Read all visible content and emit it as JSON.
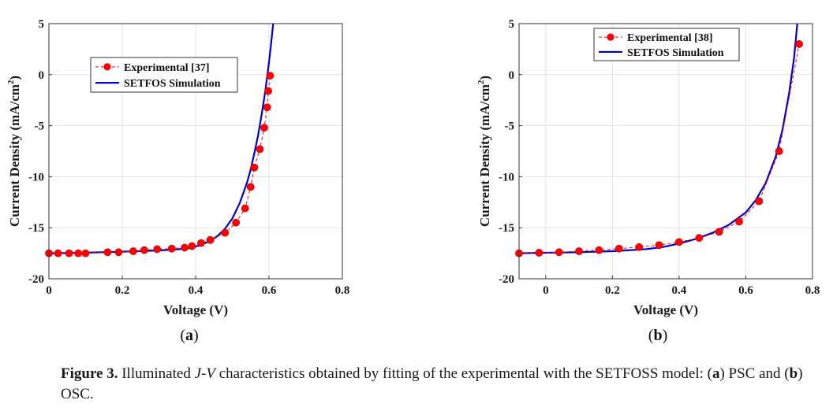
{
  "chart_data": [
    {
      "type": "line",
      "panel_label": "a",
      "xlabel": "Voltage (V)",
      "ylabel": "Current Density (mA/cm",
      "ylabel_sup": "2",
      "ylabel_close": ")",
      "xlim": [
        0,
        0.8
      ],
      "ylim": [
        -20,
        5
      ],
      "xticks": [
        0,
        0.2,
        0.4,
        0.6,
        0.8
      ],
      "xtick_labels": [
        "0",
        "0.2",
        "0.4",
        "0.6",
        "0.8"
      ],
      "yticks": [
        -20,
        -15,
        -10,
        -5,
        0,
        5
      ],
      "ytick_labels": [
        "-20",
        "-15",
        "-10",
        "-5",
        "0",
        "5"
      ],
      "grid": true,
      "legend_position": "upper-left",
      "series": [
        {
          "name": "Experimental [37]",
          "style": "dashed-markers",
          "color": "#ff0000",
          "x": [
            0.0,
            0.025,
            0.055,
            0.08,
            0.1,
            0.16,
            0.19,
            0.23,
            0.26,
            0.295,
            0.335,
            0.37,
            0.39,
            0.415,
            0.44,
            0.48,
            0.51,
            0.535,
            0.55,
            0.56,
            0.575,
            0.587,
            0.595,
            0.598,
            0.603
          ],
          "y": [
            -17.5,
            -17.5,
            -17.5,
            -17.5,
            -17.5,
            -17.4,
            -17.4,
            -17.3,
            -17.2,
            -17.1,
            -17.05,
            -16.95,
            -16.8,
            -16.5,
            -16.2,
            -15.5,
            -14.5,
            -13.1,
            -11.0,
            -9.1,
            -7.3,
            -5.2,
            -3.2,
            -1.6,
            -0.1
          ]
        },
        {
          "name": "SETFOS Simulation",
          "style": "solid",
          "color": "#0000cc",
          "x": [
            0,
            0.05,
            0.1,
            0.15,
            0.2,
            0.25,
            0.3,
            0.35,
            0.38,
            0.41,
            0.44,
            0.46,
            0.48,
            0.5,
            0.52,
            0.54,
            0.55,
            0.56,
            0.57,
            0.58,
            0.59,
            0.6,
            0.605,
            0.61,
            0.615
          ],
          "y": [
            -17.5,
            -17.48,
            -17.44,
            -17.4,
            -17.35,
            -17.29,
            -17.22,
            -17.12,
            -17.0,
            -16.75,
            -16.3,
            -15.8,
            -15.1,
            -14.1,
            -12.6,
            -10.6,
            -9.3,
            -7.7,
            -6.0,
            -3.9,
            -1.6,
            1.2,
            2.8,
            4.5,
            6.3
          ]
        }
      ]
    },
    {
      "type": "line",
      "panel_label": "b",
      "xlabel": "Voltage (V)",
      "ylabel": "Current Density (mA/cm",
      "ylabel_sup": "2",
      "ylabel_close": ")",
      "xlim": [
        -0.08,
        0.8
      ],
      "ylim": [
        -20,
        5
      ],
      "xticks": [
        0,
        0.2,
        0.4,
        0.6,
        0.8
      ],
      "xtick_labels": [
        "0",
        "0.2",
        "0.4",
        "0.6",
        "0.8"
      ],
      "yticks": [
        -20,
        -15,
        -10,
        -5,
        0,
        5
      ],
      "ytick_labels": [
        "-20",
        "-15",
        "-10",
        "-5",
        "0",
        "5"
      ],
      "grid": true,
      "legend_position": "top-left",
      "series": [
        {
          "name": "Experimental [38]",
          "style": "dashed-markers",
          "color": "#ff0000",
          "x": [
            -0.08,
            -0.02,
            0.04,
            0.1,
            0.16,
            0.22,
            0.28,
            0.34,
            0.4,
            0.46,
            0.52,
            0.58,
            0.64,
            0.7,
            0.76
          ],
          "y": [
            -17.5,
            -17.45,
            -17.4,
            -17.3,
            -17.2,
            -17.05,
            -16.9,
            -16.7,
            -16.4,
            -16.0,
            -15.4,
            -14.4,
            -12.4,
            -7.5,
            3.0
          ]
        },
        {
          "name": "SETFOS Simulation",
          "style": "solid",
          "color": "#0000cc",
          "x": [
            -0.08,
            0.0,
            0.1,
            0.2,
            0.3,
            0.35,
            0.4,
            0.45,
            0.5,
            0.55,
            0.6,
            0.63,
            0.66,
            0.69,
            0.71,
            0.73,
            0.745,
            0.755
          ],
          "y": [
            -17.5,
            -17.45,
            -17.4,
            -17.3,
            -17.1,
            -16.9,
            -16.55,
            -16.1,
            -15.5,
            -14.7,
            -13.5,
            -12.3,
            -10.6,
            -8.0,
            -5.4,
            -1.8,
            1.7,
            5.2
          ]
        }
      ]
    }
  ],
  "caption": {
    "prefix": "Figure 3.",
    "text_1": " Illuminated ",
    "italic": "J-V",
    "text_2": " characteristics obtained by fitting of the experimental with the SETFOSS model: (",
    "a_letter": "a",
    "text_3": ") PSC and (",
    "b_letter": "b",
    "text_4": ") OSC."
  }
}
